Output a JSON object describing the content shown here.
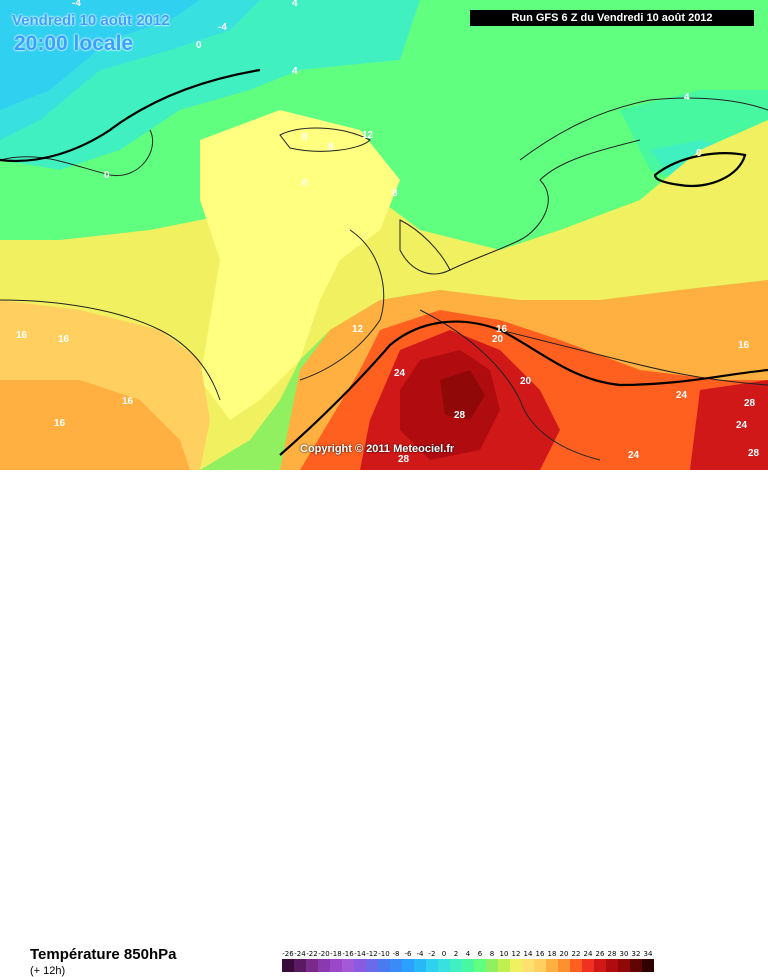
{
  "header": {
    "valid_date": "Vendredi 10 août 2012",
    "local_time": "20:00 locale",
    "run_info": "Run GFS 6 Z du Vendredi 10 août 2012",
    "copyright": "Copyright © 2011 Meteociel.fr"
  },
  "legend": {
    "parameter": "Température 850hPa",
    "lead_time": "(+ 12h)",
    "scale_values": [
      "-26",
      "-24",
      "-22",
      "-20",
      "-18",
      "-16",
      "-14",
      "-12",
      "-10",
      "-8",
      "-6",
      "-4",
      "-2",
      "0",
      "2",
      "4",
      "6",
      "8",
      "10",
      "12",
      "14",
      "16",
      "18",
      "20",
      "22",
      "24",
      "26",
      "28",
      "30",
      "32",
      "34"
    ],
    "scale_colors": [
      "#3a0a3a",
      "#5a1a62",
      "#7a2a8a",
      "#8a3ab0",
      "#9a48c8",
      "#a45ad8",
      "#8a5ae0",
      "#6a6aea",
      "#4a7af0",
      "#3a8af8",
      "#2aa0ff",
      "#28b8f8",
      "#30d0f0",
      "#38e0e0",
      "#40f0c0",
      "#48f8a0",
      "#60ff80",
      "#90f060",
      "#c0f050",
      "#f0f060",
      "#ffe070",
      "#ffd060",
      "#ffb040",
      "#ff9030",
      "#ff6020",
      "#f03020",
      "#d01818",
      "#b00c10",
      "#900808",
      "#600404",
      "#300000"
    ]
  },
  "isotherm_labels": [
    {
      "text": "-4"
    },
    {
      "text": "-4"
    },
    {
      "text": "0"
    },
    {
      "text": "4"
    },
    {
      "text": "4"
    },
    {
      "text": "0"
    },
    {
      "text": "8"
    },
    {
      "text": "8"
    },
    {
      "text": "12"
    },
    {
      "text": "8"
    },
    {
      "text": "8"
    },
    {
      "text": "4"
    },
    {
      "text": "0"
    },
    {
      "text": "16"
    },
    {
      "text": "16"
    },
    {
      "text": "16"
    },
    {
      "text": "16"
    },
    {
      "text": "12"
    },
    {
      "text": "20"
    },
    {
      "text": "16"
    },
    {
      "text": "20"
    },
    {
      "text": "24"
    },
    {
      "text": "28"
    },
    {
      "text": "28"
    },
    {
      "text": "24"
    },
    {
      "text": "24"
    },
    {
      "text": "28"
    },
    {
      "text": "24"
    },
    {
      "text": "28"
    },
    {
      "text": "16"
    }
  ]
}
